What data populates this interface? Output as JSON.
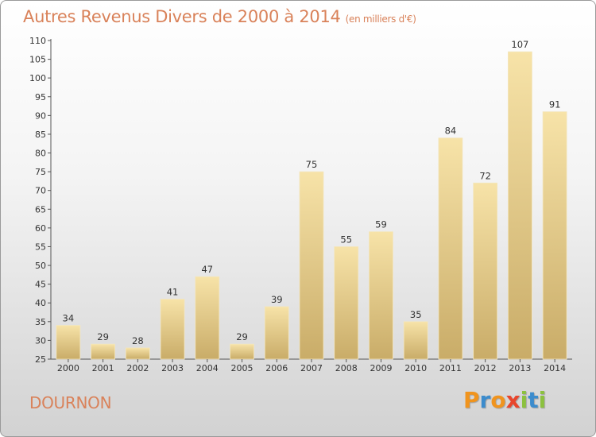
{
  "header": {
    "title": "Autres Revenus Divers de 2000 à 2014",
    "unit": "(en milliers d'€)"
  },
  "footer": {
    "town": "DOURNON",
    "logo_letters": [
      "P",
      "r",
      "o",
      "x",
      "i",
      "t",
      "i"
    ],
    "logo_colors": [
      "#f0941e",
      "#3c8ccd",
      "#f0941e",
      "#e8452c",
      "#8cc13f",
      "#3c8ccd",
      "#8cc13f"
    ]
  },
  "colors": {
    "title": "#d9825a",
    "bar_light": "#f7e3a8",
    "bar_dark": "#c9ac68"
  },
  "chart_data": {
    "type": "bar",
    "title": "Autres Revenus Divers de 2000 à 2014",
    "subtitle": "(en milliers d'€)",
    "categories": [
      "2000",
      "2001",
      "2002",
      "2003",
      "2004",
      "2005",
      "2006",
      "2007",
      "2008",
      "2009",
      "2010",
      "2011",
      "2012",
      "2013",
      "2014"
    ],
    "values": [
      34,
      29,
      28,
      41,
      47,
      29,
      39,
      75,
      55,
      59,
      35,
      84,
      72,
      107,
      91
    ],
    "ylim": [
      25,
      110
    ],
    "yticks": [
      25,
      30,
      35,
      40,
      45,
      50,
      55,
      60,
      65,
      70,
      75,
      80,
      85,
      90,
      95,
      100,
      105,
      110
    ],
    "grid": false,
    "legend": "none"
  }
}
